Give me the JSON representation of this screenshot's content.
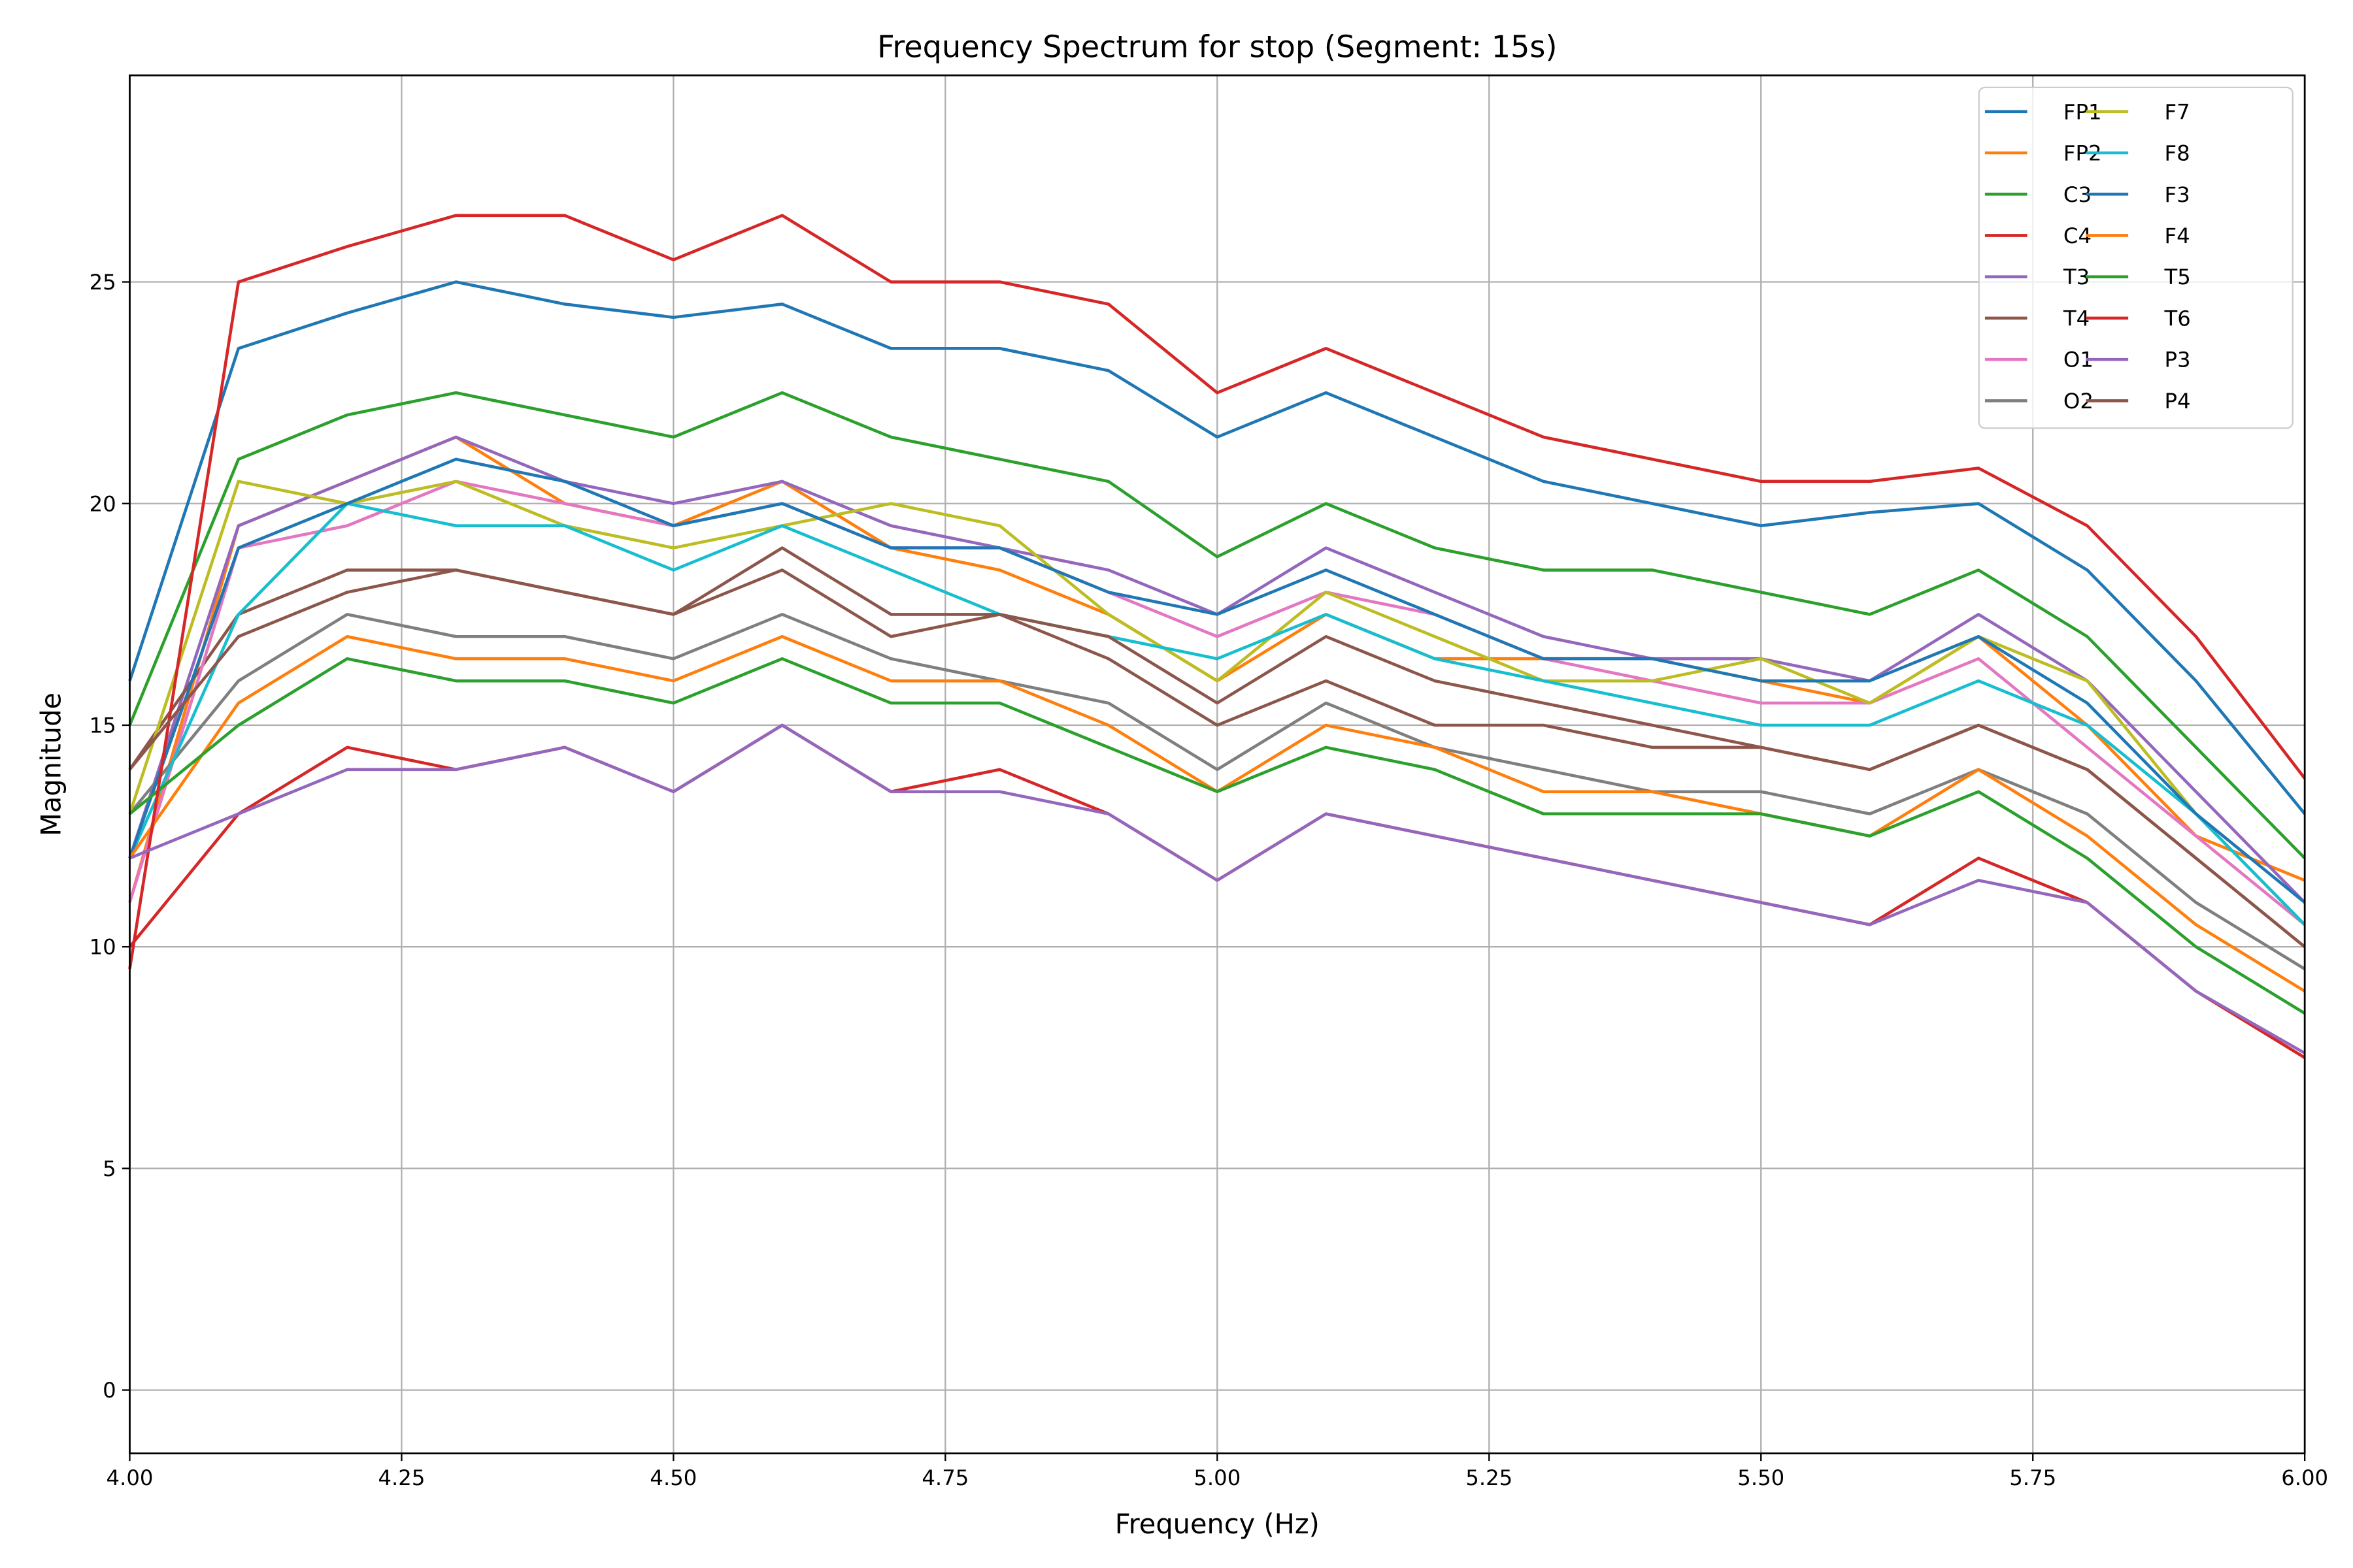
{
  "chart_data": {
    "type": "line",
    "title": "Frequency Spectrum for stop (Segment: 15s)",
    "xlabel": "Frequency (Hz)",
    "ylabel": "Magnitude",
    "xlim": [
      4.0,
      6.0
    ],
    "ylim": [
      -1.43,
      29.66
    ],
    "xticks": [
      "4.00",
      "4.25",
      "4.50",
      "4.75",
      "5.00",
      "5.25",
      "5.50",
      "5.75",
      "6.00"
    ],
    "yticks": [
      "0",
      "5",
      "10",
      "15",
      "20",
      "25"
    ],
    "grid": true,
    "legend_placement": "top-right",
    "legend_columns": 2,
    "x": [
      4.0,
      4.1,
      4.2,
      4.3,
      4.4,
      4.5,
      4.6,
      4.7,
      4.8,
      4.9,
      5.0,
      5.1,
      5.2,
      5.3,
      5.4,
      5.5,
      5.6,
      5.7,
      5.8,
      5.9,
      6.0
    ],
    "series": [
      {
        "name": "FP1",
        "color": "#1f77b4",
        "values": [
          16,
          23.5,
          24.3,
          25,
          24.5,
          24.2,
          24.5,
          23.5,
          23.5,
          23,
          21.5,
          22.5,
          21.5,
          20.5,
          20,
          19.5,
          19.8,
          20,
          18.5,
          16,
          13
        ]
      },
      {
        "name": "FP2",
        "color": "#ff7f0e",
        "values": [
          11,
          19.5,
          20.5,
          21.5,
          20,
          19.5,
          20.5,
          19,
          18.5,
          17.5,
          16,
          17.5,
          16.5,
          16.5,
          16.5,
          16,
          15.5,
          17,
          15,
          12.5,
          11.5
        ]
      },
      {
        "name": "C3",
        "color": "#2ca02c",
        "values": [
          15,
          21,
          22,
          22.5,
          22,
          21.5,
          22.5,
          21.5,
          21,
          20.5,
          18.8,
          20,
          19,
          18.5,
          18.5,
          18,
          17.5,
          18.5,
          17,
          14.5,
          12
        ]
      },
      {
        "name": "C4",
        "color": "#d62728",
        "values": [
          10,
          13,
          14.5,
          14,
          14.5,
          13.5,
          15,
          13.5,
          14,
          13,
          11.5,
          13,
          12.5,
          12,
          11.5,
          11,
          10.5,
          12,
          11,
          9,
          7.5
        ]
      },
      {
        "name": "T3",
        "color": "#9467bd",
        "values": [
          12,
          19.5,
          20.5,
          21.5,
          20.5,
          20,
          20.5,
          19.5,
          19,
          18.5,
          17.5,
          19,
          18,
          17,
          16.5,
          16.5,
          16,
          17.5,
          16,
          13.5,
          11
        ]
      },
      {
        "name": "T4",
        "color": "#8c564b",
        "values": [
          14,
          17.5,
          18.5,
          18.5,
          18,
          17.5,
          18.5,
          17,
          17.5,
          16.5,
          15,
          16,
          15,
          15,
          14.5,
          14.5,
          14,
          15,
          14,
          12,
          10
        ]
      },
      {
        "name": "O1",
        "color": "#e377c2",
        "values": [
          11,
          19,
          19.5,
          20.5,
          20,
          19.5,
          20,
          19,
          19,
          18,
          17,
          18,
          17.5,
          16.5,
          16,
          15.5,
          15.5,
          16.5,
          14.5,
          12.5,
          10.5
        ]
      },
      {
        "name": "O2",
        "color": "#7f7f7f",
        "values": [
          13,
          16,
          17.5,
          17,
          17,
          16.5,
          17.5,
          16.5,
          16,
          15.5,
          14,
          15.5,
          14.5,
          14,
          13.5,
          13.5,
          13,
          14,
          13,
          11,
          9.5
        ]
      },
      {
        "name": "F7",
        "color": "#bcbd22",
        "values": [
          13,
          20.5,
          20,
          20.5,
          19.5,
          19,
          19.5,
          20,
          19.5,
          17.5,
          16,
          18,
          17,
          16,
          16,
          16.5,
          15.5,
          17,
          16,
          13,
          10.5
        ]
      },
      {
        "name": "F8",
        "color": "#17becf",
        "values": [
          12,
          17.5,
          20,
          19.5,
          19.5,
          18.5,
          19.5,
          18.5,
          17.5,
          17,
          16.5,
          17.5,
          16.5,
          16,
          15.5,
          15,
          15,
          16,
          15,
          13,
          10.5
        ]
      },
      {
        "name": "F3",
        "color": "#1f77b4",
        "values": [
          12,
          19,
          20,
          21,
          20.5,
          19.5,
          20,
          19,
          19,
          18,
          17.5,
          18.5,
          17.5,
          16.5,
          16.5,
          16,
          16,
          17,
          15.5,
          13,
          11
        ]
      },
      {
        "name": "F4",
        "color": "#ff7f0e",
        "values": [
          12,
          15.5,
          17,
          16.5,
          16.5,
          16,
          17,
          16,
          16,
          15,
          13.5,
          15,
          14.5,
          13.5,
          13.5,
          13,
          12.5,
          14,
          12.5,
          10.5,
          9
        ]
      },
      {
        "name": "T5",
        "color": "#2ca02c",
        "values": [
          13,
          15,
          16.5,
          16,
          16,
          15.5,
          16.5,
          15.5,
          15.5,
          14.5,
          13.5,
          14.5,
          14,
          13,
          13,
          13,
          12.5,
          13.5,
          12,
          10,
          8.5
        ]
      },
      {
        "name": "T6",
        "color": "#d62728",
        "values": [
          9.5,
          25,
          25.8,
          26.5,
          26.5,
          25.5,
          26.5,
          25,
          25,
          24.5,
          22.5,
          23.5,
          22.5,
          21.5,
          21,
          20.5,
          20.5,
          20.8,
          19.5,
          17,
          13.8
        ]
      },
      {
        "name": "P3",
        "color": "#9467bd",
        "values": [
          12,
          13,
          14,
          14,
          14.5,
          13.5,
          15,
          13.5,
          13.5,
          13,
          11.5,
          13,
          12.5,
          12,
          11.5,
          11,
          10.5,
          11.5,
          11,
          9,
          7.6
        ]
      },
      {
        "name": "P4",
        "color": "#8c564b",
        "values": [
          14,
          17,
          18,
          18.5,
          18,
          17.5,
          19,
          17.5,
          17.5,
          17,
          15.5,
          17,
          16,
          15.5,
          15,
          14.5,
          14,
          15,
          14,
          12,
          10
        ]
      }
    ]
  }
}
